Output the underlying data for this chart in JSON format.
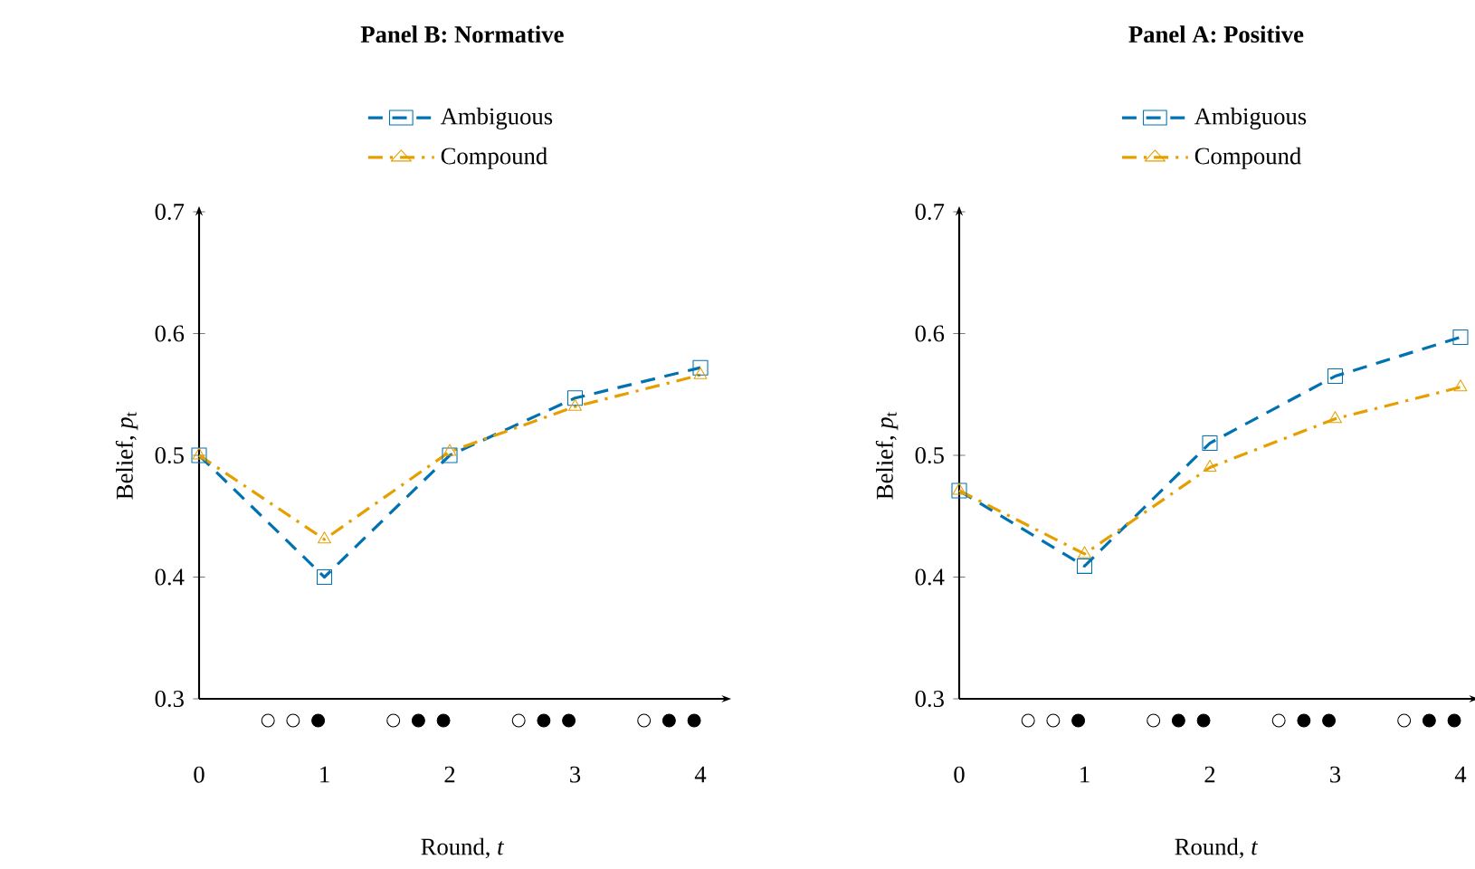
{
  "chart_data": [
    {
      "type": "line",
      "title": "Panel B: Normative",
      "xlabel": "Round, *t*",
      "ylabel": "Belief, *p*$_{t}$",
      "x": [
        0,
        1,
        2,
        3,
        4
      ],
      "series": [
        {
          "name": "Ambiguous",
          "color": "#0072b2",
          "marker": "square",
          "line_style": "dashed",
          "values": [
            0.5,
            0.4,
            0.5,
            0.547,
            0.572
          ]
        },
        {
          "name": "Compound",
          "color": "#e69f00",
          "marker": "triangle",
          "line_style": "dashdot",
          "values": [
            0.5,
            0.431,
            0.503,
            0.54,
            0.566
          ]
        }
      ],
      "xlim": [
        0,
        4.2
      ],
      "xticks": [
        0,
        1,
        2,
        3,
        4
      ],
      "ylim": [
        0.3,
        0.7
      ],
      "yticks": [
        0.3,
        0.4,
        0.5,
        0.6,
        0.7
      ],
      "legend": "top",
      "grid": false
    },
    {
      "type": "line",
      "title": "Panel A: Positive",
      "xlabel": "Round, *t*",
      "ylabel": "Belief, *p*$_{t}$",
      "x": [
        0,
        1,
        2,
        3,
        4
      ],
      "series": [
        {
          "name": "Ambiguous",
          "color": "#0072b2",
          "marker": "square",
          "line_style": "dashed",
          "values": [
            0.471,
            0.409,
            0.51,
            0.565,
            0.597
          ]
        },
        {
          "name": "Compound",
          "color": "#e69f00",
          "marker": "triangle",
          "line_style": "dashdot",
          "values": [
            0.471,
            0.419,
            0.49,
            0.53,
            0.556
          ]
        }
      ],
      "xlim": [
        0,
        4.1
      ],
      "xticks": [
        0,
        1,
        2,
        3,
        4
      ],
      "ylim": [
        0.3,
        0.7
      ],
      "yticks": [
        0.3,
        0.4,
        0.5,
        0.6,
        0.7
      ],
      "legend": "top",
      "grid": false
    }
  ]
}
